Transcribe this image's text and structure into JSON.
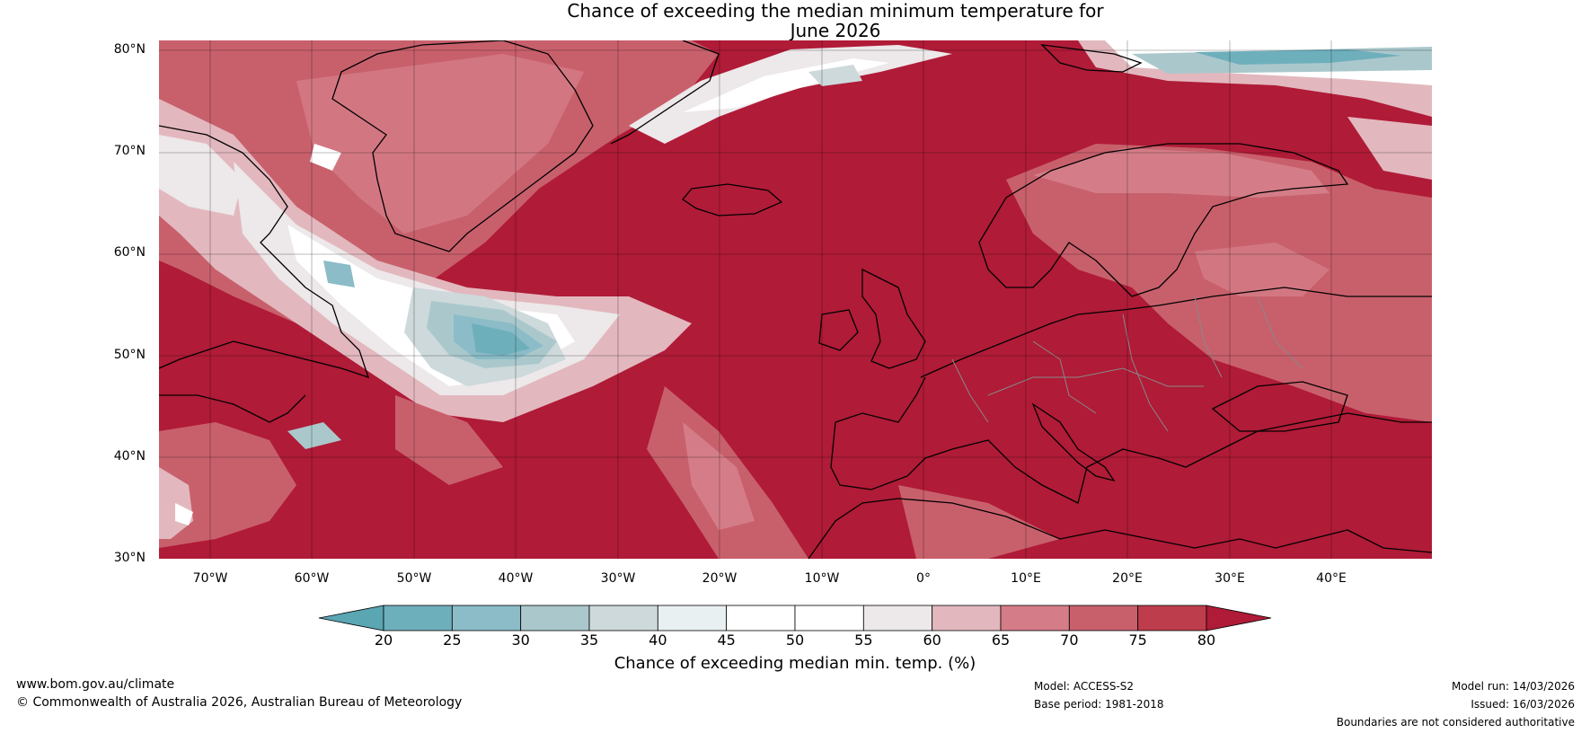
{
  "title_line1": "Chance of exceeding the median minimum temperature for",
  "title_line2": "June 2026",
  "map": {
    "latitude_labels": [
      "80°N",
      "70°N",
      "60°N",
      "50°N",
      "40°N",
      "30°N"
    ],
    "longitude_labels": [
      "70°W",
      "60°W",
      "50°W",
      "40°W",
      "30°W",
      "20°W",
      "10°W",
      "0°",
      "10°E",
      "20°E",
      "30°E",
      "40°E"
    ],
    "extent": {
      "lon_min": -75,
      "lon_max": 50,
      "lat_min": 30,
      "lat_max": 81
    }
  },
  "colorbar": {
    "ticks": [
      "20",
      "25",
      "30",
      "35",
      "40",
      "45",
      "50",
      "55",
      "60",
      "65",
      "70",
      "75",
      "80"
    ],
    "colors": [
      "#5aa6b3",
      "#6eafbc",
      "#8bbcc7",
      "#aac8cc",
      "#cdd9db",
      "#e9f0f1",
      "#ffffff",
      "#ffffff",
      "#ede8ea",
      "#e2b8be",
      "#d47d88",
      "#c8606c",
      "#bd3d4c",
      "#b01b37"
    ],
    "label": "Chance of exceeding median min. temp. (%)"
  },
  "footer": {
    "website": "www.bom.gov.au/climate",
    "copyright": "© Commonwealth of Australia 2026, Australian Bureau of Meteorology",
    "model": "Model: ACCESS-S2",
    "base_period": "Base period: 1981-2018",
    "model_run": "Model run: 14/03/2026",
    "issued": "Issued: 16/03/2026",
    "disclaimer": "Boundaries are not considered authoritative"
  }
}
